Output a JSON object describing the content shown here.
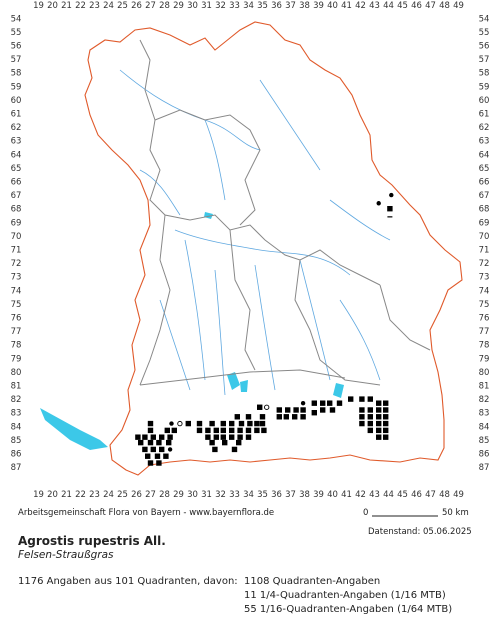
{
  "map": {
    "x_ticks": [
      "19",
      "20",
      "21",
      "22",
      "23",
      "24",
      "25",
      "26",
      "27",
      "28",
      "29",
      "30",
      "31",
      "32",
      "33",
      "34",
      "35",
      "36",
      "37",
      "38",
      "39",
      "40",
      "41",
      "42",
      "43",
      "44",
      "45",
      "46",
      "47",
      "48",
      "49"
    ],
    "y_ticks": [
      "54",
      "55",
      "56",
      "57",
      "58",
      "59",
      "60",
      "61",
      "62",
      "63",
      "64",
      "65",
      "66",
      "67",
      "68",
      "69",
      "70",
      "71",
      "72",
      "73",
      "74",
      "75",
      "76",
      "77",
      "78",
      "79",
      "80",
      "81",
      "82",
      "83",
      "84",
      "85",
      "86",
      "87"
    ],
    "colors": {
      "state_border": "#e05a2b",
      "district_border": "#888888",
      "rivers": "#5fa8e0",
      "lakes": "#3cc8e8",
      "record_fill": "#000000"
    },
    "records": [
      [
        44.2,
        67.0,
        "dot"
      ],
      [
        43.3,
        67.6,
        "dot"
      ],
      [
        44.1,
        68.0,
        "sq"
      ],
      [
        44.1,
        68.6,
        "dash"
      ],
      [
        34.8,
        82.6,
        "sq"
      ],
      [
        35.3,
        82.6,
        "circle"
      ],
      [
        36.2,
        82.8,
        "sq"
      ],
      [
        37.9,
        82.3,
        "dot"
      ],
      [
        36.8,
        82.8,
        "sq"
      ],
      [
        37.4,
        82.8,
        "sq"
      ],
      [
        37.9,
        82.8,
        "sq"
      ],
      [
        38.7,
        82.3,
        "sq"
      ],
      [
        39.3,
        82.3,
        "sq"
      ],
      [
        39.8,
        82.3,
        "sq"
      ],
      [
        40.5,
        82.3,
        "sq"
      ],
      [
        41.3,
        82.0,
        "sq"
      ],
      [
        42.1,
        82.0,
        "sq"
      ],
      [
        42.7,
        82.0,
        "sq"
      ],
      [
        43.3,
        82.3,
        "sq"
      ],
      [
        43.8,
        82.3,
        "sq"
      ],
      [
        33.2,
        83.3,
        "sq"
      ],
      [
        34.0,
        83.3,
        "sq"
      ],
      [
        35.0,
        83.3,
        "sq"
      ],
      [
        36.2,
        83.3,
        "sq"
      ],
      [
        36.7,
        83.3,
        "sq"
      ],
      [
        37.3,
        83.3,
        "sq"
      ],
      [
        37.9,
        83.3,
        "sq"
      ],
      [
        38.7,
        83.0,
        "sq"
      ],
      [
        39.3,
        82.8,
        "sq"
      ],
      [
        40.0,
        82.8,
        "sq"
      ],
      [
        42.1,
        82.8,
        "sq"
      ],
      [
        42.7,
        82.8,
        "sq"
      ],
      [
        43.3,
        82.8,
        "sq"
      ],
      [
        43.8,
        82.8,
        "sq"
      ],
      [
        42.1,
        83.3,
        "sq"
      ],
      [
        42.7,
        83.3,
        "sq"
      ],
      [
        43.3,
        83.3,
        "sq"
      ],
      [
        43.8,
        83.3,
        "sq"
      ],
      [
        27.0,
        83.8,
        "sq"
      ],
      [
        28.5,
        83.8,
        "dot"
      ],
      [
        29.1,
        83.8,
        "circle"
      ],
      [
        29.7,
        83.8,
        "sq"
      ],
      [
        30.5,
        83.8,
        "sq"
      ],
      [
        31.4,
        83.8,
        "sq"
      ],
      [
        32.2,
        83.8,
        "sq"
      ],
      [
        32.8,
        83.8,
        "sq"
      ],
      [
        33.5,
        83.8,
        "sq"
      ],
      [
        34.1,
        83.8,
        "sq"
      ],
      [
        34.6,
        83.8,
        "sq"
      ],
      [
        35.0,
        83.8,
        "sq"
      ],
      [
        42.1,
        83.8,
        "sq"
      ],
      [
        42.7,
        83.8,
        "sq"
      ],
      [
        43.3,
        83.8,
        "sq"
      ],
      [
        43.8,
        83.8,
        "sq"
      ],
      [
        27.0,
        84.3,
        "sq"
      ],
      [
        28.2,
        84.3,
        "sq"
      ],
      [
        28.7,
        84.3,
        "sq"
      ],
      [
        30.5,
        84.3,
        "sq"
      ],
      [
        31.1,
        84.3,
        "sq"
      ],
      [
        31.7,
        84.3,
        "sq"
      ],
      [
        32.2,
        84.3,
        "sq"
      ],
      [
        32.8,
        84.3,
        "sq"
      ],
      [
        33.4,
        84.3,
        "sq"
      ],
      [
        34.0,
        84.3,
        "sq"
      ],
      [
        34.6,
        84.3,
        "sq"
      ],
      [
        35.1,
        84.3,
        "sq"
      ],
      [
        42.7,
        84.3,
        "sq"
      ],
      [
        43.3,
        84.3,
        "sq"
      ],
      [
        43.8,
        84.3,
        "sq"
      ],
      [
        26.1,
        84.8,
        "sq"
      ],
      [
        26.6,
        84.8,
        "sq"
      ],
      [
        27.2,
        84.8,
        "sq"
      ],
      [
        27.8,
        84.8,
        "sq"
      ],
      [
        28.4,
        84.8,
        "sq"
      ],
      [
        31.1,
        84.8,
        "sq"
      ],
      [
        31.7,
        84.8,
        "sq"
      ],
      [
        32.2,
        84.8,
        "sq"
      ],
      [
        32.8,
        84.8,
        "sq"
      ],
      [
        33.4,
        84.8,
        "sq"
      ],
      [
        34.0,
        84.8,
        "sq"
      ],
      [
        43.3,
        84.8,
        "sq"
      ],
      [
        43.8,
        84.8,
        "sq"
      ],
      [
        26.3,
        85.2,
        "sq"
      ],
      [
        27.0,
        85.2,
        "sq"
      ],
      [
        27.6,
        85.2,
        "sq"
      ],
      [
        28.3,
        85.2,
        "sq"
      ],
      [
        31.4,
        85.2,
        "sq"
      ],
      [
        32.3,
        85.2,
        "sq"
      ],
      [
        33.3,
        85.2,
        "sq"
      ],
      [
        26.6,
        85.7,
        "sq"
      ],
      [
        27.2,
        85.7,
        "sq"
      ],
      [
        27.8,
        85.7,
        "sq"
      ],
      [
        28.4,
        85.7,
        "dot"
      ],
      [
        31.6,
        85.7,
        "sq"
      ],
      [
        33.0,
        85.7,
        "sq"
      ],
      [
        26.8,
        86.2,
        "sq"
      ],
      [
        27.5,
        86.2,
        "sq"
      ],
      [
        28.1,
        86.2,
        "sq"
      ],
      [
        27.0,
        86.7,
        "sq"
      ],
      [
        27.6,
        86.7,
        "sq"
      ]
    ]
  },
  "scale_bar": {
    "start_label": "0",
    "end_label": "50 km"
  },
  "credit": "Arbeitsgemeinschaft Flora von Bayern - www.bayernflora.de",
  "date_stamp": "Datenstand: 05.06.2025",
  "species": {
    "name": "Agrostis rupestris All.",
    "common_name": "Felsen-Straußgras"
  },
  "stats": {
    "summary": "1176 Angaben aus 101 Quadranten, davon:",
    "breakdown": [
      "1108 Quadranten-Angaben",
      "11 1/4-Quadranten-Angaben (1/16 MTB)",
      "55 1/16-Quadranten-Angaben (1/64 MTB)"
    ]
  }
}
